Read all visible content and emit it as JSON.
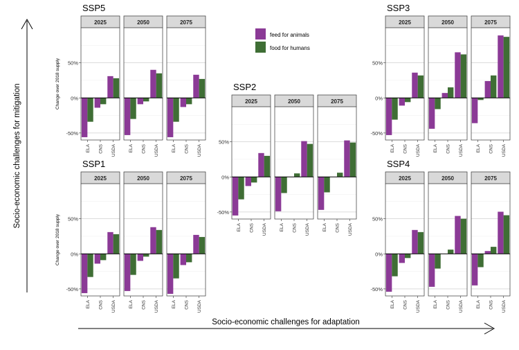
{
  "axis_titles": {
    "y": "Socio-economic challenges for mitigation",
    "x": "Socio-economic challenges for adaptation"
  },
  "legend": {
    "items": [
      {
        "label": "feed for animals",
        "color": "#8B3A96"
      },
      {
        "label": "food for humans",
        "color": "#3F6E35"
      }
    ]
  },
  "y_axis_label": "Change over 2018 supply",
  "chart_data": [
    {
      "type": "bar",
      "title": "SSP5",
      "facets": [
        "2025",
        "2050",
        "2075"
      ],
      "categories": [
        "ELA",
        "CNS",
        "USDA"
      ],
      "y_ticks": [
        "-50%",
        "0%",
        "50%"
      ],
      "ylim": [
        -60,
        100
      ],
      "series": [
        {
          "name": "feed for animals",
          "values": [
            [
              -56,
              -14,
              31
            ],
            [
              -53,
              -9,
              40
            ],
            [
              -56,
              -13,
              33
            ]
          ]
        },
        {
          "name": "food for humans",
          "values": [
            [
              -34,
              -9,
              28
            ],
            [
              -30,
              -5,
              35
            ],
            [
              -34,
              -9,
              27
            ]
          ]
        }
      ]
    },
    {
      "type": "bar",
      "title": "SSP1",
      "facets": [
        "2025",
        "2050",
        "2075"
      ],
      "categories": [
        "ELA",
        "CNS",
        "USDA"
      ],
      "y_ticks": [
        "-50%",
        "0%",
        "50%"
      ],
      "ylim": [
        -60,
        100
      ],
      "series": [
        {
          "name": "feed for animals",
          "values": [
            [
              -56,
              -14,
              31
            ],
            [
              -53,
              -10,
              38
            ],
            [
              -57,
              -16,
              27
            ]
          ]
        },
        {
          "name": "food for humans",
          "values": [
            [
              -33,
              -9,
              28
            ],
            [
              -30,
              -4,
              34
            ],
            [
              -35,
              -12,
              24
            ]
          ]
        }
      ]
    },
    {
      "type": "bar",
      "title": "SSP2",
      "facets": [
        "2025",
        "2050",
        "2075"
      ],
      "categories": [
        "ELA",
        "CNS",
        "USDA"
      ],
      "y_ticks": [
        "-50%",
        "0%",
        "50%"
      ],
      "ylim": [
        -60,
        100
      ],
      "series": [
        {
          "name": "feed for animals",
          "values": [
            [
              -55,
              -13,
              34
            ],
            [
              -49,
              0,
              51
            ],
            [
              -47,
              0,
              52
            ]
          ]
        },
        {
          "name": "food for humans",
          "values": [
            [
              -32,
              -8,
              30
            ],
            [
              -23,
              5,
              47
            ],
            [
              -22,
              6,
              49
            ]
          ]
        }
      ]
    },
    {
      "type": "bar",
      "title": "SSP3",
      "facets": [
        "2025",
        "2050",
        "2075"
      ],
      "categories": [
        "ELA",
        "CNS",
        "USDA"
      ],
      "y_ticks": [
        "-50%",
        "0%",
        "50%"
      ],
      "ylim": [
        -60,
        100
      ],
      "series": [
        {
          "name": "feed for animals",
          "values": [
            [
              -53,
              -11,
              36
            ],
            [
              -44,
              7,
              65
            ],
            [
              -36,
              24,
              89
            ]
          ]
        },
        {
          "name": "food for humans",
          "values": [
            [
              -31,
              -6,
              32
            ],
            [
              -16,
              15,
              62
            ],
            [
              -3,
              32,
              87
            ]
          ]
        }
      ]
    },
    {
      "type": "bar",
      "title": "SSP4",
      "facets": [
        "2025",
        "2050",
        "2075"
      ],
      "categories": [
        "ELA",
        "CNS",
        "USDA"
      ],
      "y_ticks": [
        "-50%",
        "0%",
        "50%"
      ],
      "ylim": [
        -60,
        100
      ],
      "series": [
        {
          "name": "feed for animals",
          "values": [
            [
              -54,
              -13,
              34
            ],
            [
              -47,
              0,
              54
            ],
            [
              -45,
              4,
              60
            ]
          ]
        },
        {
          "name": "food for humans",
          "values": [
            [
              -32,
              -6,
              31
            ],
            [
              -21,
              6,
              50
            ],
            [
              -19,
              10,
              55
            ]
          ]
        }
      ]
    }
  ]
}
